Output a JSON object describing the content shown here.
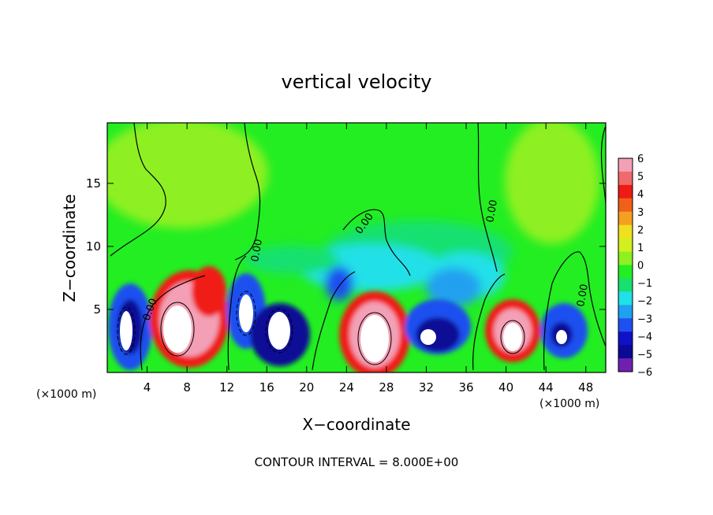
{
  "chart_data": {
    "type": "heatmap",
    "title": "vertical velocity",
    "xlabel": "X−coordinate",
    "ylabel": "Z−coordinate",
    "x_unit_left": "(×1000 m)",
    "x_unit_right": "(×1000 m)",
    "xlim": [
      0,
      50
    ],
    "ylim": [
      0,
      19.8
    ],
    "x_ticks": [
      4,
      8,
      12,
      16,
      20,
      24,
      28,
      32,
      36,
      40,
      44,
      48
    ],
    "y_ticks": [
      5,
      10,
      15
    ],
    "colorbar": {
      "labels": [
        "6",
        "5",
        "4",
        "3",
        "2",
        "1",
        "0",
        "−1",
        "−2",
        "−3",
        "−4",
        "−5",
        "−6"
      ],
      "range": [
        -6,
        6
      ],
      "colors": [
        "#f3a0b6",
        "#f06a6a",
        "#f01a14",
        "#f06018",
        "#f5a020",
        "#f0e020",
        "#d2f020",
        "#8ef020",
        "#22ee22",
        "#18e070",
        "#20e0e8",
        "#20a0f0",
        "#1e50f0",
        "#1010c8",
        "#0a0a96",
        "#7020b0"
      ]
    },
    "contour_label": "0.00",
    "contour_interval_text": "CONTOUR INTERVAL = 8.000E+00",
    "features": [
      {
        "type": "updraft",
        "x": 1.8,
        "z": 3.6
      },
      {
        "type": "updraft",
        "x": 7.5,
        "z": 4.2
      },
      {
        "type": "updraft",
        "x": 10.5,
        "z": 5.5
      },
      {
        "type": "updraft",
        "x": 14.5,
        "z": 5.0
      },
      {
        "type": "updraft",
        "x": 17.0,
        "z": 3.2
      },
      {
        "type": "updraft",
        "x": 27.0,
        "z": 3.4
      },
      {
        "type": "updraft",
        "x": 31.5,
        "z": 3.0
      },
      {
        "type": "updraft",
        "x": 41.0,
        "z": 3.2
      },
      {
        "type": "updraft",
        "x": 45.0,
        "z": 2.8
      },
      {
        "type": "downdraft",
        "x": 3.0,
        "z": 3.5
      },
      {
        "type": "downdraft",
        "x": 13.0,
        "z": 4.5
      },
      {
        "type": "downdraft",
        "x": 18.5,
        "z": 3.5
      },
      {
        "type": "downdraft",
        "x": 23.5,
        "z": 6.5
      },
      {
        "type": "downdraft",
        "x": 33.0,
        "z": 3.5
      },
      {
        "type": "downdraft",
        "x": 44.5,
        "z": 3.5
      }
    ]
  }
}
